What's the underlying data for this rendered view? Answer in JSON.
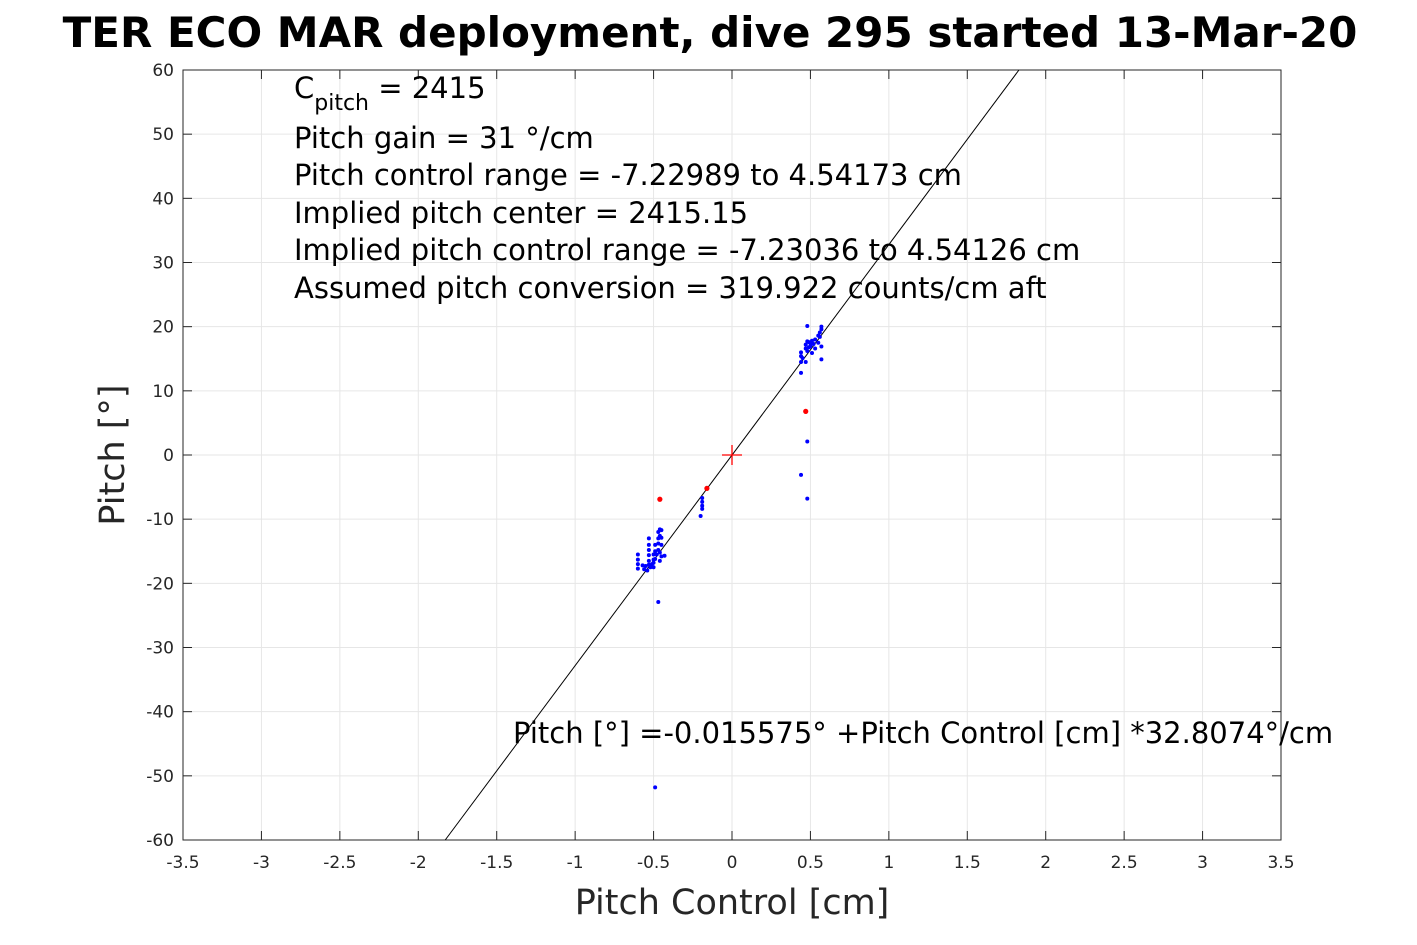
{
  "chart_data": {
    "type": "scatter",
    "title": "TER ECO MAR deployment, dive 295 started 13-Mar-20",
    "xlabel": "Pitch Control [cm]",
    "ylabel": "Pitch [°]",
    "xlim": [
      -3.5,
      3.5
    ],
    "ylim": [
      -60,
      60
    ],
    "xticks": [
      -3.5,
      -3,
      -2.5,
      -2,
      -1.5,
      -1,
      -0.5,
      0,
      0.5,
      1,
      1.5,
      2,
      2.5,
      3,
      3.5
    ],
    "xtick_labels": [
      "-3.5",
      "-3",
      "-2.5",
      "-2",
      "-1.5",
      "-1",
      "-0.5",
      "0",
      "0.5",
      "1",
      "1.5",
      "2",
      "2.5",
      "3",
      "3.5"
    ],
    "yticks": [
      -60,
      -50,
      -40,
      -30,
      -20,
      -10,
      0,
      10,
      20,
      30,
      40,
      50,
      60
    ],
    "ytick_labels": [
      "-60",
      "-50",
      "-40",
      "-30",
      "-20",
      "-10",
      "0",
      "10",
      "20",
      "30",
      "40",
      "50",
      "60"
    ],
    "grid": true,
    "colors": {
      "used": "#0000ff",
      "excluded": "#ff0000",
      "fit": "#000000",
      "center": "#ff0000",
      "grid": "#e6e6e6"
    },
    "fit_line": {
      "intercept": -0.015575,
      "slope": 32.8074
    },
    "center_marker": {
      "x": 0,
      "y": 0
    },
    "annotations": {
      "c_pitch_main": "C",
      "c_pitch_sub": "pitch",
      "c_pitch_rest": " = 2415",
      "lines": [
        "Pitch gain = 31 °/cm",
        "Pitch control range = -7.22989 to 4.54173 cm",
        "Implied pitch center = 2415.15",
        "Implied pitch control range = -7.23036 to 4.54126 cm",
        "Assumed pitch conversion = 319.922 counts/cm aft"
      ],
      "fit_equation": "Pitch [°] =-0.015575° +Pitch Control [cm] *32.8074°/cm"
    },
    "series": [
      {
        "color": "#0000ff",
        "points": [
          [
            -0.6,
            -15.5
          ],
          [
            -0.6,
            -16.3
          ],
          [
            -0.6,
            -17.0
          ],
          [
            -0.6,
            -17.7
          ],
          [
            -0.57,
            -17.2
          ],
          [
            -0.56,
            -17.8
          ],
          [
            -0.55,
            -17.3
          ],
          [
            -0.54,
            -18.0
          ],
          [
            -0.53,
            -13.0
          ],
          [
            -0.53,
            -14.0
          ],
          [
            -0.53,
            -14.8
          ],
          [
            -0.53,
            -15.6
          ],
          [
            -0.53,
            -16.5
          ],
          [
            -0.53,
            -17.1
          ],
          [
            -0.52,
            -17.5
          ],
          [
            -0.51,
            -17.0
          ],
          [
            -0.5,
            -15.5
          ],
          [
            -0.5,
            -16.3
          ],
          [
            -0.5,
            -16.8
          ],
          [
            -0.5,
            -17.5
          ],
          [
            -0.49,
            -14.0
          ],
          [
            -0.49,
            -15.0
          ],
          [
            -0.49,
            -16.2
          ],
          [
            -0.48,
            -15.5
          ],
          [
            -0.47,
            -12.0
          ],
          [
            -0.47,
            -13.0
          ],
          [
            -0.47,
            -13.8
          ],
          [
            -0.47,
            -14.8
          ],
          [
            -0.46,
            -11.6
          ],
          [
            -0.46,
            -12.6
          ],
          [
            -0.46,
            -15.2
          ],
          [
            -0.46,
            -16.5
          ],
          [
            -0.45,
            -11.7
          ],
          [
            -0.45,
            -12.9
          ],
          [
            -0.45,
            -14.0
          ],
          [
            -0.45,
            -15.8
          ],
          [
            -0.43,
            -15.7
          ],
          [
            -0.47,
            -22.9
          ],
          [
            -0.49,
            -51.8
          ],
          [
            -0.19,
            -6.7
          ],
          [
            -0.19,
            -7.3
          ],
          [
            -0.19,
            -7.9
          ],
          [
            -0.19,
            -8.4
          ],
          [
            -0.2,
            -9.5
          ],
          [
            0.44,
            12.8
          ],
          [
            0.44,
            14.5
          ],
          [
            0.44,
            15.4
          ],
          [
            0.44,
            16.0
          ],
          [
            0.45,
            15.1
          ],
          [
            0.47,
            14.5
          ],
          [
            0.47,
            16.6
          ],
          [
            0.47,
            17.2
          ],
          [
            0.48,
            17.7
          ],
          [
            0.48,
            16.2
          ],
          [
            0.48,
            20.1
          ],
          [
            0.49,
            16.8
          ],
          [
            0.49,
            17.6
          ],
          [
            0.5,
            16.9
          ],
          [
            0.5,
            17.4
          ],
          [
            0.51,
            15.9
          ],
          [
            0.51,
            17.8
          ],
          [
            0.52,
            17.3
          ],
          [
            0.53,
            16.6
          ],
          [
            0.53,
            18.0
          ],
          [
            0.55,
            18.6
          ],
          [
            0.55,
            17.5
          ],
          [
            0.56,
            19.1
          ],
          [
            0.56,
            18.4
          ],
          [
            0.57,
            16.9
          ],
          [
            0.57,
            19.6
          ],
          [
            0.57,
            20.0
          ],
          [
            0.57,
            14.9
          ],
          [
            0.44,
            -3.1
          ],
          [
            0.48,
            2.1
          ],
          [
            0.48,
            -6.8
          ]
        ]
      },
      {
        "color": "#ff0000",
        "points": [
          [
            -0.46,
            -6.9
          ],
          [
            -0.16,
            -5.2
          ],
          [
            0.47,
            6.8
          ]
        ]
      }
    ]
  }
}
